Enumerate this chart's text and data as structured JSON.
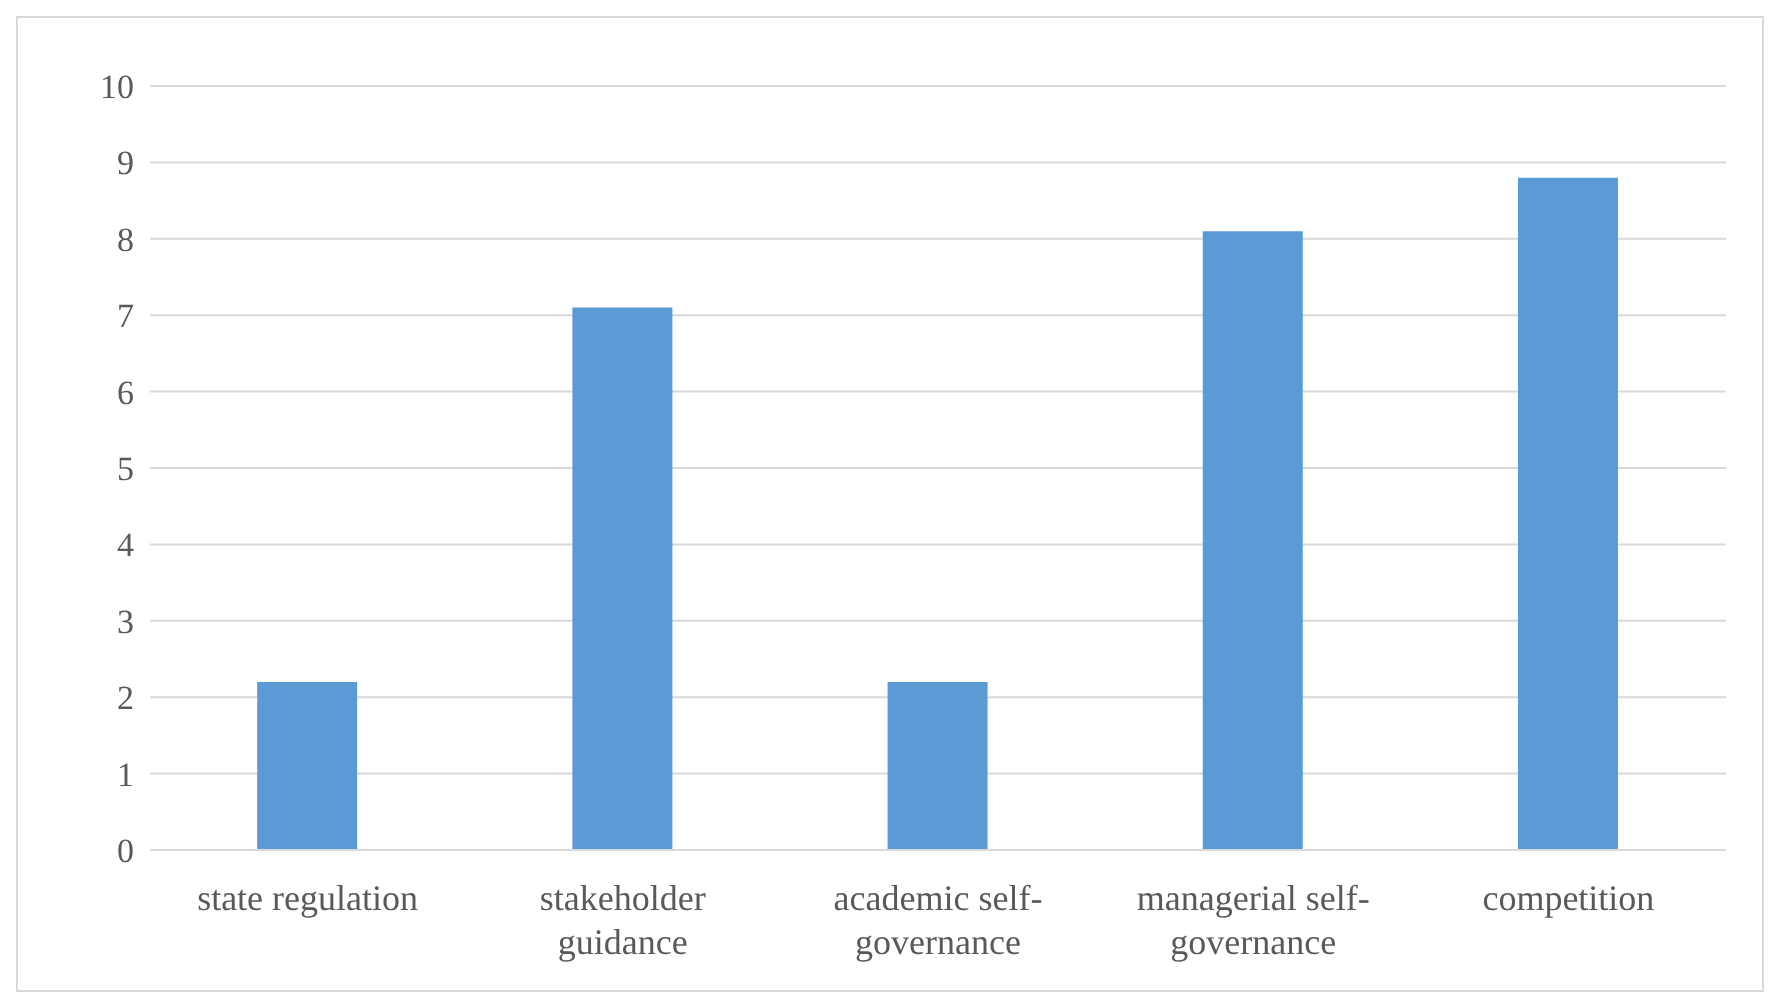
{
  "chart_data": {
    "type": "bar",
    "categories": [
      "state regulation",
      "stakeholder guidance",
      "academic self-governance",
      "managerial self-governance",
      "competition"
    ],
    "values": [
      2.2,
      7.1,
      2.2,
      8.1,
      8.8
    ],
    "color": "#5b9bd5",
    "ylim": [
      0,
      10
    ],
    "yticks": [
      0,
      1,
      2,
      3,
      4,
      5,
      6,
      7,
      8,
      9,
      10
    ],
    "grid": "y",
    "legend": false
  }
}
